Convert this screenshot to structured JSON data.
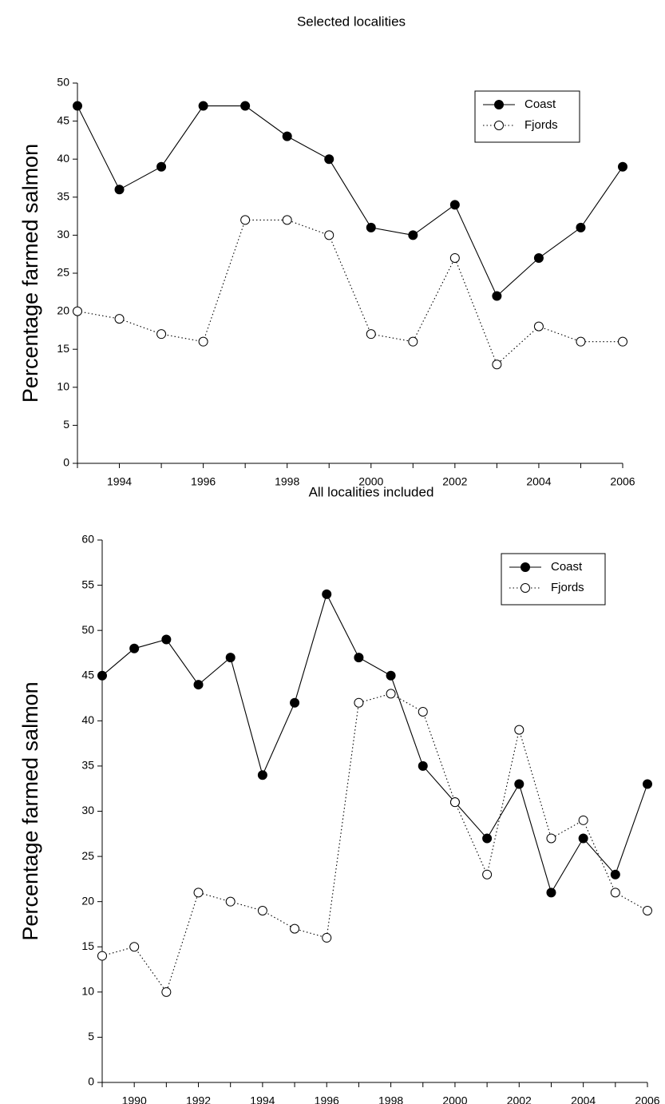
{
  "chart_data": [
    {
      "type": "line",
      "title": "Selected localities",
      "xlabel": "",
      "ylabel": "Percentage farmed salmon",
      "xlim": [
        1993,
        2006
      ],
      "ylim": [
        0,
        50
      ],
      "x_ticks": [
        1994,
        1996,
        1998,
        2000,
        2002,
        2004,
        2006
      ],
      "x_tick_labels": [
        "1994",
        "1996",
        "1998",
        "2000",
        "2002",
        "2004",
        "2006"
      ],
      "y_ticks": [
        0,
        5,
        10,
        15,
        20,
        25,
        30,
        35,
        40,
        45,
        50
      ],
      "y_tick_labels": [
        "0",
        "5",
        "10",
        "15",
        "20",
        "25",
        "30",
        "35",
        "40",
        "45",
        "50"
      ],
      "grid": false,
      "legend_position": "top-right",
      "x": [
        1993,
        1994,
        1995,
        1996,
        1997,
        1998,
        1999,
        2000,
        2001,
        2002,
        2003,
        2004,
        2005,
        2006
      ],
      "series": [
        {
          "name": "Coast",
          "marker": "filled-circle",
          "line": "solid",
          "color": "#000000",
          "values": [
            47,
            36,
            39,
            47,
            47,
            43,
            40,
            31,
            30,
            34,
            22,
            27,
            31,
            39
          ]
        },
        {
          "name": "Fjords",
          "marker": "open-circle",
          "line": "dotted",
          "color": "#000000",
          "values": [
            20,
            19,
            17,
            16,
            32,
            32,
            30,
            17,
            16,
            27,
            13,
            18,
            16,
            16
          ]
        }
      ]
    },
    {
      "type": "line",
      "title": "All localities included",
      "xlabel": "",
      "ylabel": "Percentage farmed salmon",
      "xlim": [
        1989,
        2006
      ],
      "ylim": [
        0,
        60
      ],
      "x_ticks": [
        1990,
        1992,
        1994,
        1996,
        1998,
        2000,
        2002,
        2004,
        2006
      ],
      "x_tick_labels": [
        "1990",
        "1992",
        "1994",
        "1996",
        "1998",
        "2000",
        "2002",
        "2004",
        "2006"
      ],
      "y_ticks": [
        0,
        5,
        10,
        15,
        20,
        25,
        30,
        35,
        40,
        45,
        50,
        55,
        60
      ],
      "y_tick_labels": [
        "0",
        "5",
        "10",
        "15",
        "20",
        "25",
        "30",
        "35",
        "40",
        "45",
        "50",
        "55",
        "60"
      ],
      "grid": false,
      "legend_position": "top-right",
      "x": [
        1989,
        1990,
        1991,
        1992,
        1993,
        1994,
        1995,
        1996,
        1997,
        1998,
        1999,
        2000,
        2001,
        2002,
        2003,
        2004,
        2005,
        2006
      ],
      "series": [
        {
          "name": "Coast",
          "marker": "filled-circle",
          "line": "solid",
          "color": "#000000",
          "values": [
            45,
            48,
            49,
            44,
            47,
            34,
            42,
            54,
            47,
            45,
            35,
            31,
            27,
            33,
            21,
            27,
            23,
            33
          ]
        },
        {
          "name": "Fjords",
          "marker": "open-circle",
          "line": "dotted",
          "color": "#000000",
          "values": [
            14,
            15,
            10,
            21,
            20,
            19,
            17,
            16,
            42,
            43,
            41,
            31,
            23,
            39,
            27,
            29,
            21,
            19
          ]
        }
      ]
    }
  ]
}
